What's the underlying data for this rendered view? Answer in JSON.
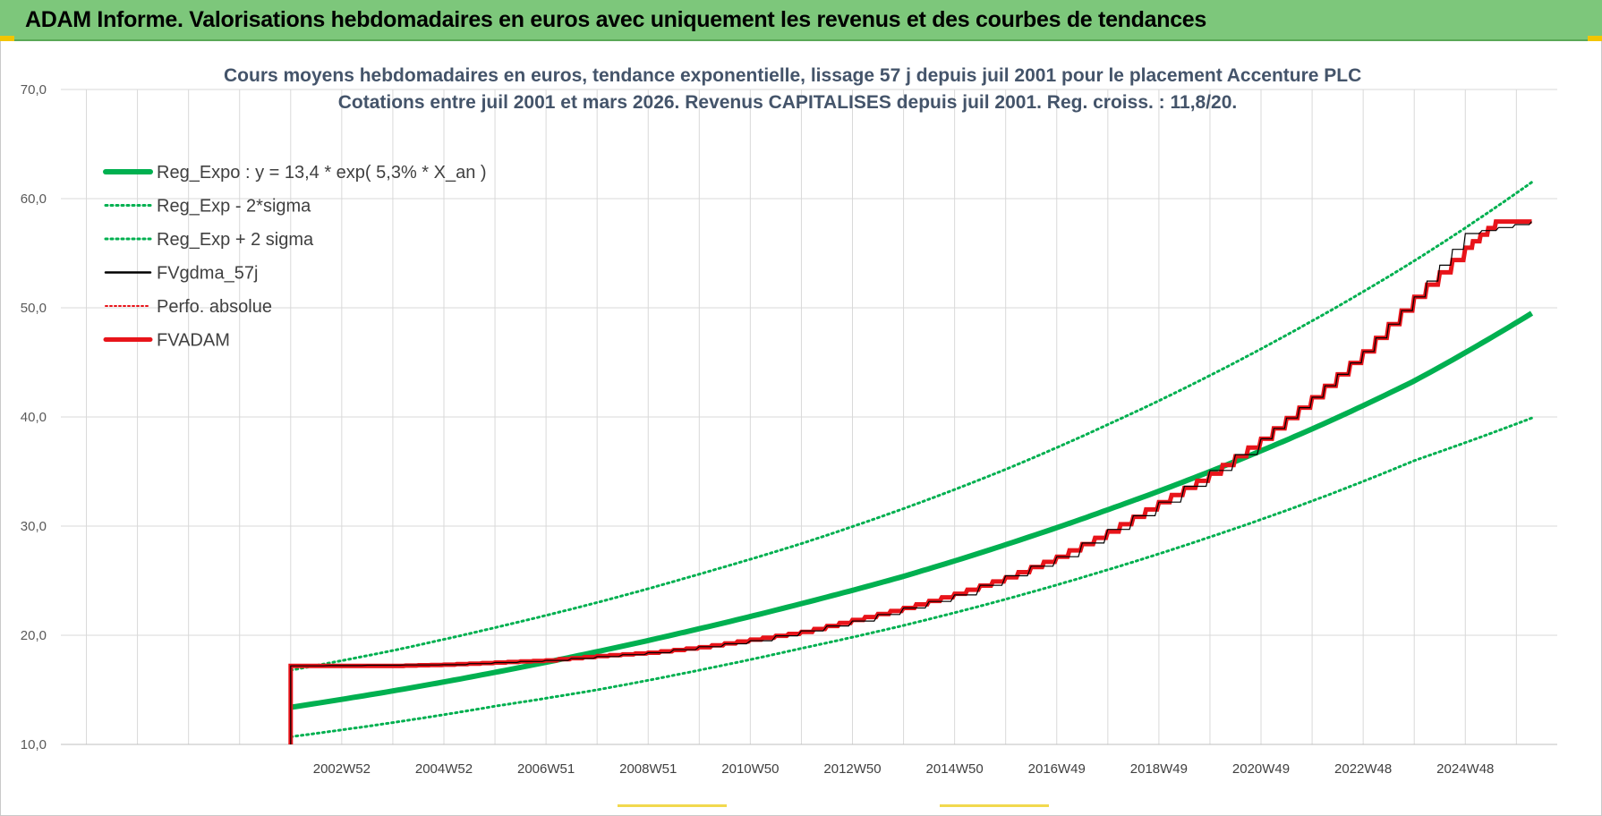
{
  "banner": {
    "title": "ADAM Informe. Valorisations hebdomadaires en euros avec uniquement les revenus et des courbes de tendances"
  },
  "chart_data": {
    "type": "line",
    "title": "Cours moyens hebdomadaires en euros, tendance exponentielle, lissage 57 j depuis juil 2001 pour le placement Accenture PLC",
    "subtitle": "Cotations entre juil 2001 et mars 2026. Revenus CAPITALISES depuis juil 2001. Reg. croiss. : 11,8/20.",
    "xlabel": "",
    "ylabel": "",
    "xlim": [
      1997.5,
      2026.8
    ],
    "ylim": [
      10,
      70
    ],
    "yticks": [
      "10,0",
      "20,0",
      "30,0",
      "40,0",
      "50,0",
      "60,0",
      "70,0"
    ],
    "xtick_labels": [
      "2002W52",
      "2004W52",
      "2006W51",
      "2008W51",
      "2010W50",
      "2012W50",
      "2014W50",
      "2016W49",
      "2018W49",
      "2020W49",
      "2022W48",
      "2024W48"
    ],
    "xtick_positions": [
      2003,
      2005,
      2007,
      2009,
      2011,
      2013,
      2015,
      2017,
      2019,
      2021,
      2023,
      2025
    ],
    "grid": true,
    "legend_position": "top-left",
    "colors": {
      "green": "#00b050",
      "red": "#e8141a",
      "black": "#000000",
      "grid": "#d9d9d9"
    },
    "series": [
      {
        "name": "Reg_Expo : y = 13,4 * exp( 5,3% *  X_an )",
        "style": "thick-green",
        "x": [
          2002.0,
          2004.0,
          2006.0,
          2008.0,
          2010.0,
          2012.0,
          2014.0,
          2016.0,
          2018.0,
          2020.0,
          2022.0,
          2024.0,
          2026.3
        ],
        "values": [
          13.4,
          14.9,
          16.6,
          18.5,
          20.6,
          22.9,
          25.4,
          28.3,
          31.5,
          35.0,
          38.9,
          43.3,
          49.5
        ]
      },
      {
        "name": "Reg_Exp - 2*sigma",
        "style": "dotted-green",
        "x": [
          2002.0,
          2004.0,
          2006.0,
          2008.0,
          2010.0,
          2012.0,
          2014.0,
          2016.0,
          2018.0,
          2020.0,
          2022.0,
          2024.0,
          2026.3
        ],
        "values": [
          10.7,
          12.0,
          13.5,
          15.0,
          16.8,
          18.8,
          20.9,
          23.3,
          26.0,
          29.0,
          32.3,
          36.0,
          39.9
        ]
      },
      {
        "name": "Reg_Exp + 2 sigma",
        "style": "dotted-green",
        "x": [
          2002.0,
          2004.0,
          2006.0,
          2008.0,
          2010.0,
          2012.0,
          2014.0,
          2016.0,
          2018.0,
          2020.0,
          2022.0,
          2024.0,
          2026.3
        ],
        "values": [
          16.8,
          18.6,
          20.7,
          23.0,
          25.6,
          28.4,
          31.6,
          35.2,
          39.3,
          43.8,
          48.8,
          54.3,
          61.5
        ]
      },
      {
        "name": "FVgdma_57j",
        "style": "thin-black",
        "x": [
          2002.0,
          2002.0,
          2005.0,
          2007.0,
          2009.0,
          2011.0,
          2013.0,
          2015.0,
          2017.0,
          2019.0,
          2021.0,
          2022.0,
          2023.0,
          2024.0,
          2025.0,
          2026.3
        ],
        "values": [
          10.0,
          17.2,
          17.3,
          17.7,
          18.4,
          19.5,
          21.3,
          23.7,
          27.2,
          32.2,
          38.0,
          41.8,
          46.0,
          51.0,
          56.8,
          57.9
        ]
      },
      {
        "name": "Perfo. absolue",
        "style": "dotted-red",
        "x": [],
        "values": []
      },
      {
        "name": "FVADAM",
        "style": "thick-red-step",
        "x": [
          2002.0,
          2002.0,
          2003.0,
          2004.0,
          2005.0,
          2006.0,
          2007.0,
          2008.0,
          2009.0,
          2010.0,
          2011.0,
          2012.0,
          2013.0,
          2014.0,
          2015.0,
          2016.0,
          2017.0,
          2018.0,
          2019.0,
          2020.0,
          2021.0,
          2022.0,
          2023.0,
          2024.0,
          2025.0,
          2025.6,
          2026.3
        ],
        "values": [
          10.0,
          17.2,
          17.2,
          17.2,
          17.3,
          17.5,
          17.7,
          18.1,
          18.4,
          18.9,
          19.6,
          20.3,
          21.4,
          22.5,
          23.8,
          25.3,
          27.2,
          29.5,
          32.2,
          34.8,
          38.0,
          41.8,
          46.0,
          51.0,
          55.5,
          57.9,
          57.9
        ]
      }
    ]
  }
}
